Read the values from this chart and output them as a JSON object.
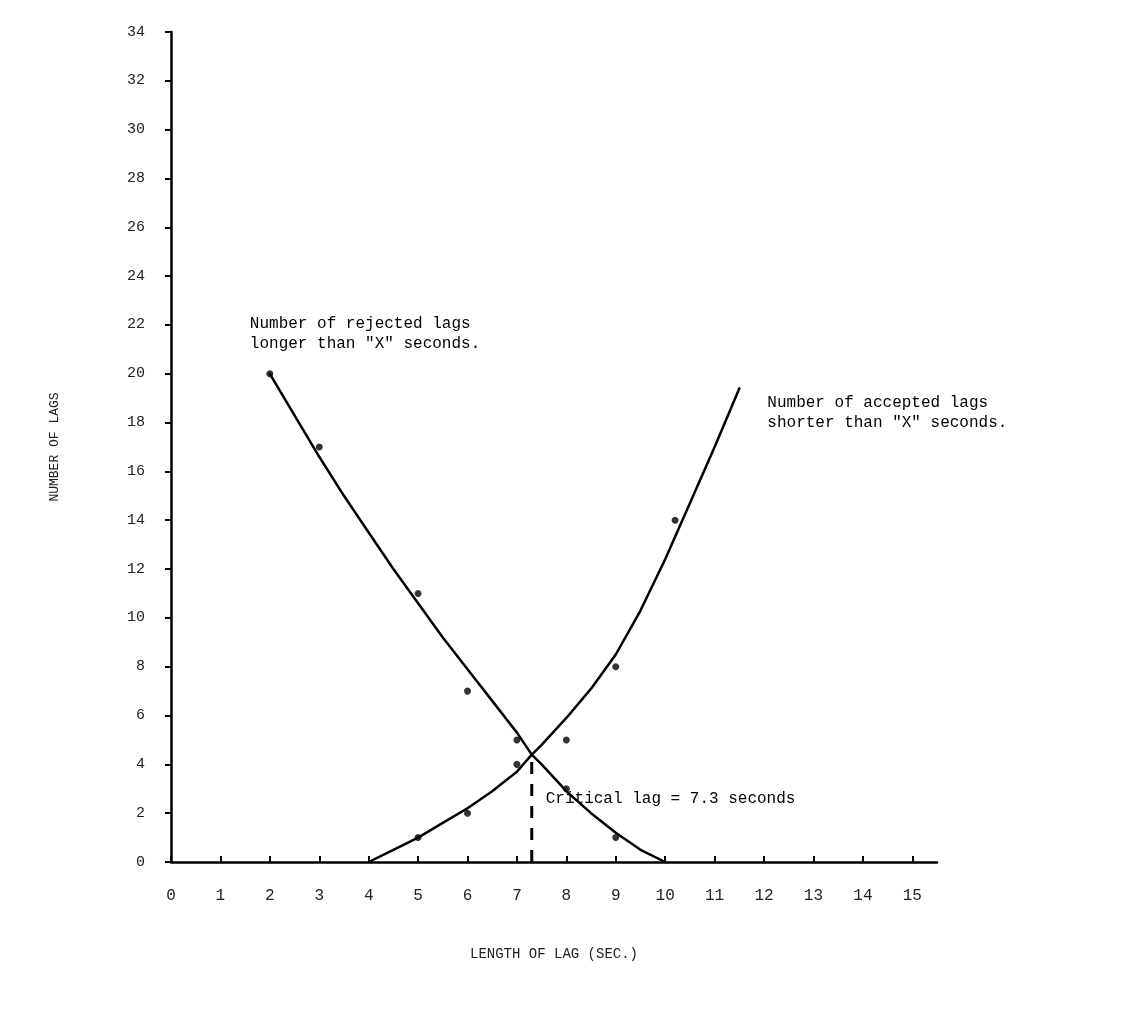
{
  "chart_data": {
    "type": "scatter",
    "xlabel": "LENGTH OF LAG (SEC.)",
    "ylabel": "NUMBER OF LAGS",
    "xlim": [
      0,
      15.5
    ],
    "xticks": [
      0,
      1,
      2,
      3,
      4,
      5,
      6,
      7,
      8,
      9,
      10,
      11,
      12,
      13,
      14,
      15
    ],
    "ylim": [
      0,
      34
    ],
    "yticks": [
      0,
      2,
      4,
      6,
      8,
      10,
      12,
      14,
      16,
      18,
      20,
      22,
      24,
      26,
      28,
      30,
      32,
      34
    ],
    "grid": false,
    "legend": false,
    "marker": "circle",
    "series": [
      {
        "type": "line",
        "name": "Number of rejected lags longer than \"X\" seconds.",
        "color": "#000000",
        "marker": "none",
        "line_style": "solid",
        "x": [
          2,
          2.5,
          3,
          3.5,
          4,
          4.5,
          5,
          5.5,
          6,
          6.5,
          7,
          7.3,
          7.5,
          8,
          8.5,
          9,
          9.5,
          10
        ],
        "values": [
          20,
          18.3,
          16.6,
          15,
          13.5,
          12,
          10.6,
          9.2,
          7.9,
          6.6,
          5.3,
          4.4,
          4,
          2.9,
          2,
          1.2,
          0.5,
          0
        ]
      },
      {
        "color": "#000000",
        "x": [
          2,
          3,
          5,
          6,
          7,
          8,
          9
        ],
        "values": [
          20,
          17,
          11,
          7,
          5,
          3,
          1
        ]
      },
      {
        "type": "line",
        "name": "Number of accepted lags shorter than \"X\" seconds.",
        "color": "#000000",
        "marker": "none",
        "line_style": "solid",
        "x": [
          4,
          4.5,
          5,
          5.5,
          6,
          6.5,
          7,
          7.3,
          7.5,
          8,
          8.5,
          9,
          9.5,
          10,
          10.5,
          11,
          11.5
        ],
        "values": [
          0,
          0.5,
          1,
          1.6,
          2.2,
          2.9,
          3.7,
          4.4,
          4.8,
          5.9,
          7.1,
          8.5,
          10.3,
          12.4,
          14.7,
          17,
          19.4
        ]
      },
      {
        "color": "#000000",
        "x": [
          5,
          6,
          7,
          8,
          9,
          10.2
        ],
        "values": [
          1,
          2,
          4,
          5,
          8,
          14
        ]
      }
    ],
    "ref_lines": [
      {
        "axis": "x",
        "value": 7.3,
        "label": "Critical lag = 7.3 seconds",
        "line_style": "dashed",
        "color": "#000000"
      }
    ]
  }
}
